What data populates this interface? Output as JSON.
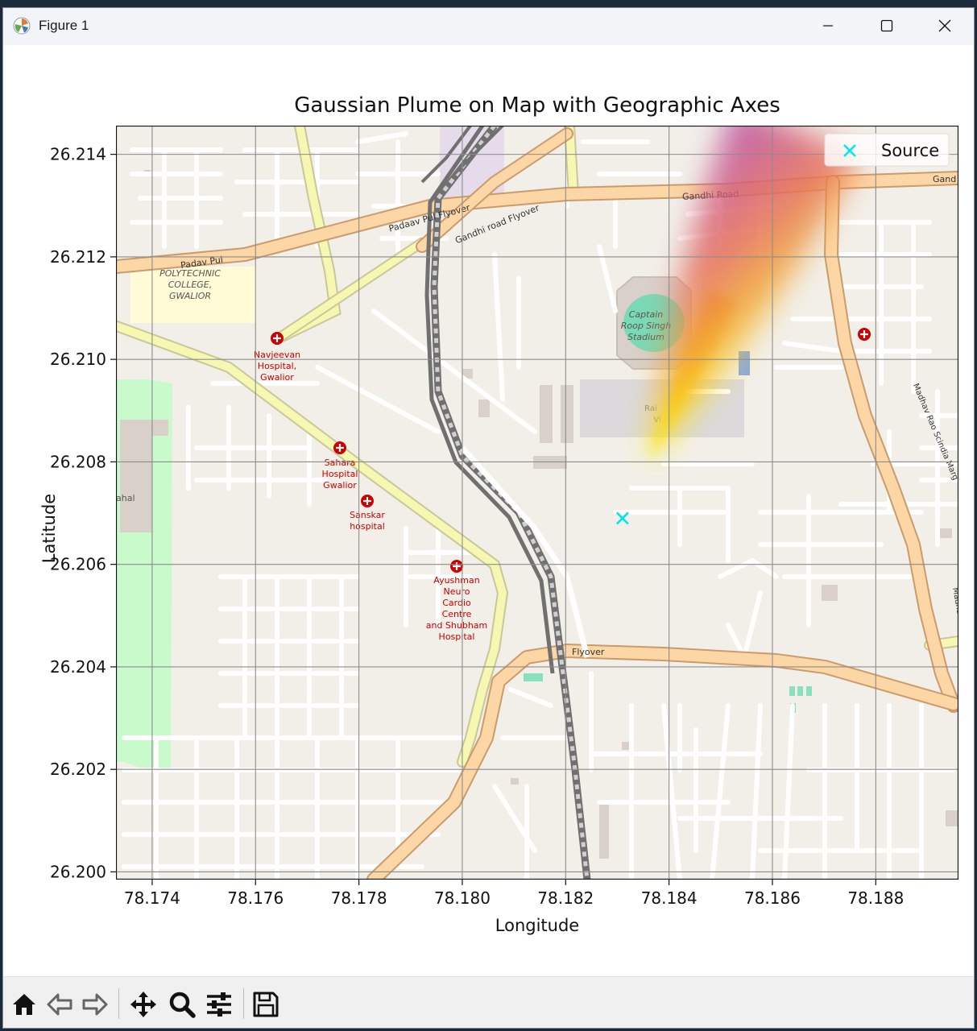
{
  "window": {
    "title": "Figure 1"
  },
  "toolbar": {
    "buttons": [
      "home-icon",
      "back-arrow-icon",
      "forward-arrow-icon",
      "pan-move-icon",
      "zoom-magnifier-icon",
      "subplot-config-icon",
      "save-floppy-icon"
    ]
  },
  "chart_data": {
    "type": "heatmap",
    "title": "Gaussian Plume on Map with Geographic Axes",
    "xlabel": "Longitude",
    "ylabel": "Latitude",
    "xlim": [
      78.1733,
      78.1896
    ],
    "ylim": [
      26.19985,
      26.21456
    ],
    "xticks": [
      "78.174",
      "78.176",
      "78.178",
      "78.180",
      "78.182",
      "78.184",
      "78.186",
      "78.188"
    ],
    "yticks": [
      "26.200",
      "26.202",
      "26.204",
      "26.206",
      "26.208",
      "26.210",
      "26.212",
      "26.214"
    ],
    "grid": true,
    "legend": {
      "placement": "top-right",
      "entries": [
        {
          "label": "Source",
          "marker": "x",
          "color": "#00e5ee"
        }
      ]
    },
    "source": {
      "x": 78.1831,
      "y": 26.2069
    },
    "plume": {
      "colormap": "plasma",
      "from": {
        "x": 78.1836,
        "y": 26.208
      },
      "to": {
        "x": 78.1865,
        "y": 26.2145
      }
    },
    "map_labels": {
      "roads": [
        "Padaav Pul Flyover",
        "Gandhi road Flyover",
        "Gandhi Road",
        "Padav Pul",
        "Flyover",
        "Madhav Rao Scindia Marg",
        "Gand"
      ],
      "places": [
        "POLYTECHNIC COLLEGE, GWALIOR",
        "Captain Roop Singh Stadium",
        "Navjeevan Hospital, Gwalior",
        "Sahara Hospital Gwalior",
        "Sanskar hospital",
        "Ayushman Neuro Cardio Centre and Shubham Hospital",
        "ahal",
        "Rai Vi"
      ]
    }
  }
}
